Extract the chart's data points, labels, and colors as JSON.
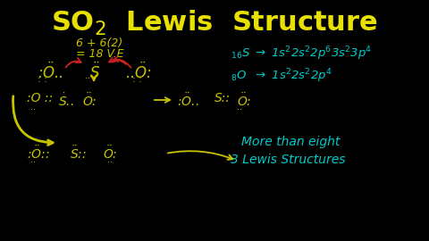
{
  "bg_color": "#000000",
  "title_color": "#e8e000",
  "chalk_yellow": "#c8c400",
  "chalk_cyan": "#00cccc",
  "chalk_red": "#cc2222",
  "figsize": [
    4.8,
    2.7
  ],
  "dpi": 100,
  "xlim": [
    0,
    480
  ],
  "ylim": [
    0,
    270
  ]
}
